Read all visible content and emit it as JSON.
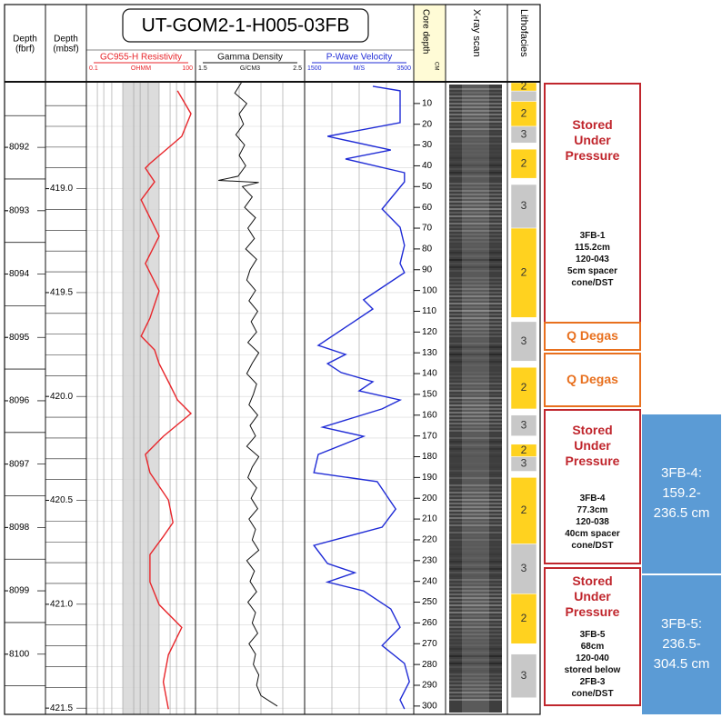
{
  "title": "UT-GOM2-1-H005-03FB",
  "headers": {
    "fbrf": [
      "Depth",
      "(fbrf)"
    ],
    "mbsf": [
      "Depth",
      "(mbsf)"
    ],
    "core_depth": "Core depth",
    "core_unit": "CM",
    "xray": "X-ray scan",
    "litho": "Lithofacies"
  },
  "fbrf_axis": {
    "lim": [
      8090.98,
      8100.95
    ],
    "ticks": [
      8092,
      8093,
      8094,
      8095,
      8096,
      8097,
      8098,
      8099,
      8100
    ],
    "grid": [
      8091.5,
      8092,
      8092.5,
      8093,
      8093.5,
      8094,
      8094.5,
      8095,
      8095.5,
      8096,
      8096.5,
      8097,
      8097.5,
      8098,
      8098.5,
      8099,
      8099.5,
      8100,
      8100.5
    ]
  },
  "mbsf_axis": {
    "lim": [
      418.49,
      421.53
    ],
    "ticks": [
      {
        "value": 419,
        "label": "419.0"
      },
      419.5,
      {
        "value": 420,
        "label": "420.0"
      },
      420.5,
      {
        "value": 421,
        "label": "421.0"
      },
      421.5
    ],
    "grid": [
      418.6,
      418.7,
      418.8,
      418.9,
      419,
      419.1,
      419.2,
      419.3,
      419.4,
      419.5,
      419.6,
      419.7,
      419.8,
      419.9,
      420,
      420.1,
      420.2,
      420.3,
      420.4,
      420.5,
      420.6,
      420.7,
      420.8,
      420.9,
      421,
      421.1,
      421.2,
      421.3,
      421.4,
      421.5
    ]
  },
  "core_axis": {
    "lim": [
      0,
      304
    ],
    "ticks": [
      10,
      20,
      30,
      40,
      50,
      60,
      70,
      80,
      90,
      100,
      110,
      120,
      130,
      140,
      150,
      160,
      170,
      180,
      190,
      200,
      210,
      220,
      230,
      240,
      250,
      260,
      270,
      280,
      290,
      300
    ]
  },
  "tracks": [
    {
      "name": "GC955-H Resistivity",
      "unit": "OHMM",
      "lim": [
        0.1,
        100
      ],
      "log": true,
      "color": "#e8262b",
      "grid": [
        0.2,
        0.3,
        0.5,
        1,
        2,
        3,
        5,
        10,
        20,
        30,
        50
      ],
      "depth": [
        3.9,
        14.9,
        25.8,
        38.9,
        41.1,
        47.7,
        56.4,
        73.9,
        87,
        100.2,
        113.3,
        122,
        128.6,
        135.2,
        143.9,
        152.7,
        159.2,
        170.2,
        178.9,
        187.7,
        200.8,
        211.7,
        218.4,
        227.1,
        240.3,
        251.2,
        262.2,
        275.3,
        288.4,
        301.5
      ],
      "values": [
        32,
        75,
        42,
        5.6,
        4.2,
        7.5,
        3.2,
        10,
        4.2,
        10,
        5.6,
        3.2,
        7.5,
        10,
        18,
        32,
        75,
        13,
        4.2,
        5.6,
        18,
        24,
        13,
        5.6,
        5.6,
        10,
        42,
        18,
        13,
        18
      ]
    },
    {
      "name": "Gamma Density",
      "unit": "G/CM3",
      "lim": [
        1.5,
        2.5
      ],
      "log": false,
      "color": "#111111",
      "grid": [
        1.7,
        1.9,
        2.1,
        2.3
      ],
      "depth": [
        0,
        5,
        10,
        15,
        20,
        25,
        30,
        35,
        40,
        45,
        47,
        48,
        50,
        55,
        60,
        65,
        70,
        75,
        80,
        85,
        90,
        95,
        100,
        105,
        110,
        115,
        120,
        125,
        130,
        135,
        140,
        145,
        150,
        155,
        160,
        165,
        170,
        175,
        180,
        185,
        190,
        195,
        200,
        205,
        210,
        215,
        220,
        225,
        230,
        235,
        240,
        245,
        250,
        255,
        260,
        265,
        270,
        275,
        280,
        285,
        290,
        295,
        300
      ],
      "values": [
        1.92,
        1.86,
        1.97,
        1.9,
        1.94,
        1.87,
        1.95,
        1.9,
        1.96,
        1.89,
        1.71,
        2.08,
        1.93,
        2.02,
        1.95,
        2.05,
        1.98,
        2.04,
        1.96,
        2.06,
        2.0,
        1.97,
        2.05,
        1.99,
        2.07,
        2.01,
        2.06,
        1.98,
        2.08,
        2.02,
        1.97,
        2.06,
        2.03,
        1.99,
        2.07,
        2.0,
        2.05,
        1.97,
        2.08,
        2.02,
        1.98,
        2.06,
        2.01,
        2.07,
        1.99,
        2.05,
        2.02,
        2.08,
        1.97,
        2.04,
        2.0,
        2.06,
        1.98,
        2.05,
        2.02,
        2.07,
        1.99,
        2.05,
        2.03,
        2.08,
        2.06,
        2.1,
        2.25
      ]
    },
    {
      "name": "P-Wave Velocity",
      "unit": "M/S",
      "lim": [
        1500,
        3500
      ],
      "log": false,
      "color": "#1f2bd6",
      "grid": [
        2000,
        2500,
        3000
      ],
      "depth": [
        1.7,
        3.9,
        19.2,
        25.8,
        32.4,
        36.7,
        43.3,
        47.7,
        60.8,
        69.6,
        78.3,
        87,
        91.4,
        104.5,
        108.9,
        117.7,
        126.4,
        130.8,
        135.2,
        139.5,
        143.9,
        148.3,
        152.7,
        157,
        165.8,
        170.2,
        178.9,
        187.7,
        192,
        205.2,
        213.9,
        222.7,
        231.4,
        235.8,
        240.3,
        244.6,
        253.3,
        262.1,
        270.9,
        279.5,
        288.3,
        297,
        301.4
      ],
      "values": [
        2750,
        3250,
        3250,
        1920,
        3080,
        2250,
        3330,
        3330,
        2920,
        3250,
        3330,
        3250,
        3330,
        2580,
        2750,
        2250,
        1750,
        2250,
        1920,
        2170,
        2750,
        2500,
        3250,
        2920,
        1830,
        2580,
        1750,
        1670,
        2830,
        3170,
        2920,
        1670,
        1920,
        2420,
        1920,
        2580,
        3080,
        3250,
        2920,
        3330,
        3420,
        3250,
        3330
      ]
    }
  ],
  "lithofacies": [
    {
      "top": 0,
      "bottom": 4,
      "label": "2",
      "color": "#ffd21f"
    },
    {
      "top": 4,
      "bottom": 9,
      "label": null,
      "color": "#c8c8c8"
    },
    {
      "top": 9,
      "bottom": 21,
      "label": "2",
      "color": "#ffd21f"
    },
    {
      "top": 21,
      "bottom": 29,
      "label": "3",
      "color": "#c8c8c8"
    },
    {
      "top": 32,
      "bottom": 46,
      "label": "2",
      "color": "#ffd21f"
    },
    {
      "top": 49,
      "bottom": 70,
      "label": "3",
      "color": "#c8c8c8"
    },
    {
      "top": 70,
      "bottom": 113,
      "label": "2",
      "color": "#ffd21f"
    },
    {
      "top": 115,
      "bottom": 134,
      "label": "3",
      "color": "#c8c8c8"
    },
    {
      "top": 137,
      "bottom": 157,
      "label": "2",
      "color": "#ffd21f"
    },
    {
      "top": 160,
      "bottom": 170,
      "label": "3",
      "color": "#c8c8c8"
    },
    {
      "top": 174,
      "bottom": 180,
      "label": "2",
      "color": "#ffd21f"
    },
    {
      "top": 180,
      "bottom": 187,
      "label": "3",
      "color": "#c8c8c8"
    },
    {
      "top": 190,
      "bottom": 222,
      "label": "2",
      "color": "#ffd21f"
    },
    {
      "top": 222,
      "bottom": 246,
      "label": "3",
      "color": "#c8c8c8"
    },
    {
      "top": 246,
      "bottom": 270,
      "label": "2",
      "color": "#ffd21f"
    },
    {
      "top": 275,
      "bottom": 296,
      "label": "3",
      "color": "#c8c8c8"
    }
  ],
  "annotations": [
    {
      "top": 0,
      "bottom": 116,
      "color": "#c0262d",
      "heading": "Stored Under Pressure",
      "lines": [
        "3FB-1",
        "115.2cm",
        "120-043",
        "5cm spacer",
        "cone/DST"
      ]
    },
    {
      "top": 115,
      "bottom": 129,
      "color": "#e8701e",
      "heading": "Q Degas",
      "lines": []
    },
    {
      "top": 130,
      "bottom": 156,
      "color": "#e8701e",
      "heading": "Q Degas",
      "lines": []
    },
    {
      "top": 157,
      "bottom": 232,
      "color": "#c0262d",
      "heading": "Stored Under Pressure",
      "lines": [
        "3FB-4",
        "77.3cm",
        "120-038",
        "40cm spacer",
        "cone/DST"
      ]
    },
    {
      "top": 233,
      "bottom": 300,
      "color": "#c0262d",
      "heading": "Stored Under Pressure",
      "lines": [
        "3FB-5",
        "68cm",
        "120-040",
        "stored below",
        "2FB-3",
        "cone/DST"
      ]
    }
  ],
  "intervals": [
    {
      "top": 159.2,
      "bottom": 236.5,
      "text": "3FB-4: 159.2-236.5 cm"
    },
    {
      "top": 236.5,
      "bottom": 304.5,
      "text": "3FB-5: 236.5-304.5 cm"
    }
  ]
}
